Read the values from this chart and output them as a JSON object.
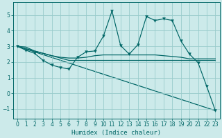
{
  "xlabel": "Humidex (Indice chaleur)",
  "xlim": [
    -0.5,
    23.5
  ],
  "ylim": [
    -1.6,
    5.8
  ],
  "yticks": [
    -1,
    0,
    1,
    2,
    3,
    4,
    5
  ],
  "xticks": [
    0,
    1,
    2,
    3,
    4,
    5,
    6,
    7,
    8,
    9,
    10,
    11,
    12,
    13,
    14,
    15,
    16,
    17,
    18,
    19,
    20,
    21,
    22,
    23
  ],
  "bg_color": "#cceaea",
  "line_color": "#006666",
  "grid_color": "#99cccc",
  "series": {
    "line1_x": [
      0,
      1,
      2,
      3,
      4,
      5,
      6,
      7,
      8,
      9,
      10,
      11,
      12,
      13,
      14,
      15,
      16,
      17,
      18,
      19,
      20,
      21,
      22,
      23
    ],
    "line1_y": [
      3.0,
      2.75,
      2.55,
      2.1,
      1.8,
      1.65,
      1.55,
      2.3,
      2.65,
      2.7,
      3.65,
      5.25,
      3.05,
      2.5,
      3.1,
      4.9,
      4.65,
      4.75,
      4.65,
      3.35,
      2.5,
      1.95,
      0.45,
      -1.1
    ],
    "line2_x": [
      0,
      1,
      2,
      3,
      4,
      5,
      6,
      7,
      8,
      9,
      10,
      11,
      12,
      13,
      14,
      15,
      16,
      17,
      18,
      19,
      20,
      21,
      22,
      23
    ],
    "line2_y": [
      3.0,
      2.95,
      2.7,
      2.55,
      2.4,
      2.3,
      2.25,
      2.25,
      2.3,
      2.4,
      2.45,
      2.45,
      2.45,
      2.45,
      2.45,
      2.45,
      2.45,
      2.4,
      2.35,
      2.3,
      2.2,
      2.2,
      2.2,
      2.2
    ],
    "line3_x": [
      0,
      1,
      2,
      3,
      4,
      5,
      6,
      7,
      8,
      9,
      10,
      11,
      12,
      13,
      14,
      15,
      16,
      17,
      18,
      19,
      20,
      21,
      22,
      23
    ],
    "line3_y": [
      3.0,
      2.85,
      2.7,
      2.55,
      2.4,
      2.25,
      2.1,
      2.1,
      2.1,
      2.1,
      2.1,
      2.1,
      2.1,
      2.1,
      2.1,
      2.1,
      2.1,
      2.1,
      2.1,
      2.1,
      2.1,
      2.1,
      2.1,
      2.1
    ],
    "line4_x": [
      0,
      23
    ],
    "line4_y": [
      3.0,
      -1.1
    ]
  }
}
